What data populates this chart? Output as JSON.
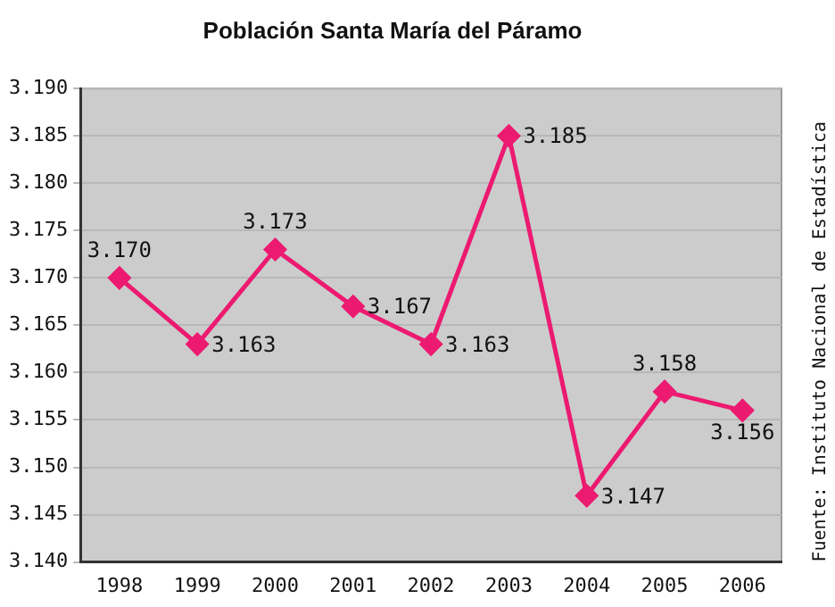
{
  "chart_data": {
    "type": "line",
    "title": "Población Santa María del Páramo",
    "categories": [
      "1998",
      "1999",
      "2000",
      "2001",
      "2002",
      "2003",
      "2004",
      "2005",
      "2006"
    ],
    "series": [
      {
        "color": "#ec1a70",
        "values": [
          3.17,
          3.163,
          3.173,
          3.167,
          3.163,
          3.185,
          3.147,
          3.158,
          3.156
        ],
        "value_labels": [
          "3.170",
          "3.163",
          "3.173",
          "3.167",
          "3.163",
          "3.185",
          "3.147",
          "3.158",
          "3.156"
        ]
      }
    ],
    "ylim": [
      3.14,
      3.19
    ],
    "yticks": [
      {
        "value": 3.14,
        "label": "3.140"
      },
      {
        "value": 3.145,
        "label": "3.145"
      },
      {
        "value": 3.15,
        "label": "3.150"
      },
      {
        "value": 3.155,
        "label": "3.155"
      },
      {
        "value": 3.16,
        "label": "3.160"
      },
      {
        "value": 3.165,
        "label": "3.165"
      },
      {
        "value": 3.17,
        "label": "3.170"
      },
      {
        "value": 3.175,
        "label": "3.175"
      },
      {
        "value": 3.18,
        "label": "3.180"
      },
      {
        "value": 3.185,
        "label": "3.185"
      },
      {
        "value": 3.19,
        "label": "3.190"
      }
    ],
    "grid": "y",
    "marker": "diamond",
    "line_style": "solid",
    "legend": false,
    "annotations": [
      "Fuente: Instituto Nacional de Estadística"
    ]
  }
}
